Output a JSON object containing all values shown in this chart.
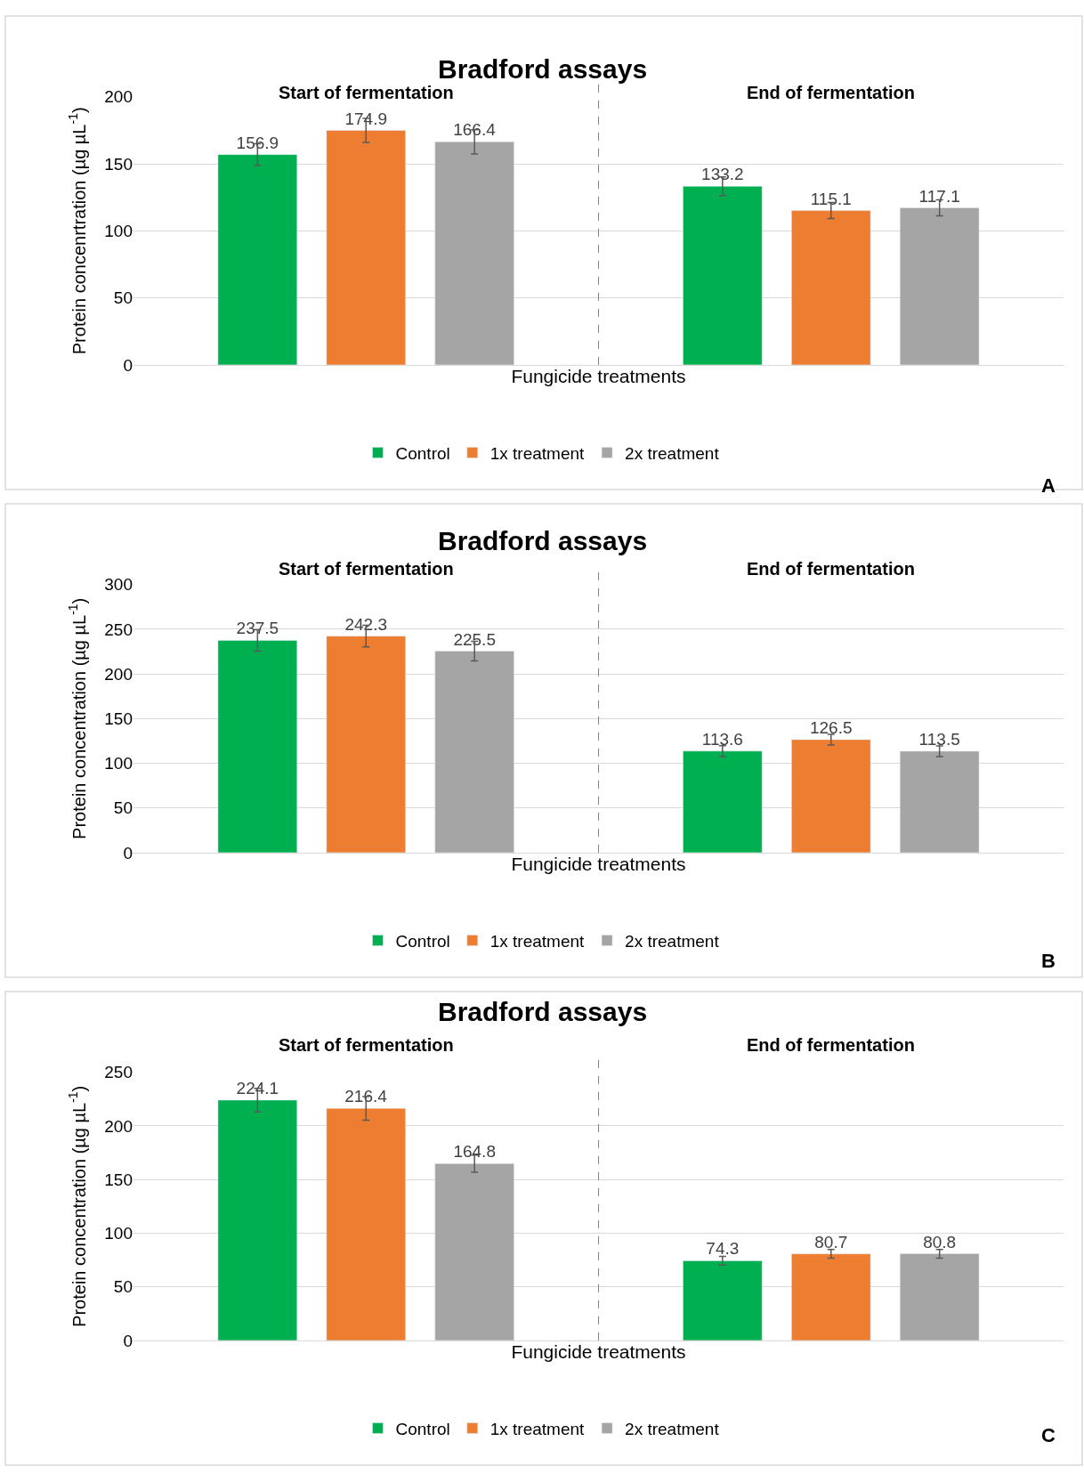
{
  "chart_data": [
    {
      "type": "bar",
      "title": "Bradford assays",
      "xlabel": "Fungicide treatments",
      "ylabel": "Protein concenrtration (µg µL$^{-1}$)",
      "categories": [
        null,
        null
      ],
      "series": [
        {
          "name": "Control",
          "color": "#00b050",
          "values": [
            156.9,
            133.2
          ],
          "errors": [
            8,
            7
          ]
        },
        {
          "name": "1x treatment",
          "color": "#ed7d31",
          "values": [
            174.9,
            115.1
          ],
          "errors": [
            9,
            6
          ]
        },
        {
          "name": "2x treatment",
          "color": "#a5a5a5",
          "values": [
            166.4,
            117.1
          ],
          "errors": [
            9,
            6
          ]
        }
      ],
      "ylim": [
        0,
        200
      ],
      "yticks": [
        0,
        50,
        100,
        150,
        200
      ],
      "grid": "y",
      "legend": "bottom",
      "data_labels": true,
      "annotations": [
        "Start of fermentation",
        "End of fermentation",
        "A"
      ]
    },
    {
      "type": "bar",
      "title": "Bradford assays",
      "xlabel": "Fungicide treatments",
      "ylabel": "Protein concentration (µg µL$^{-1}$)",
      "categories": [
        null,
        null
      ],
      "series": [
        {
          "name": "Control",
          "color": "#00b050",
          "values": [
            237.5,
            113.6
          ],
          "errors": [
            12,
            6
          ]
        },
        {
          "name": "1x treatment",
          "color": "#ed7d31",
          "values": [
            242.3,
            126.5
          ],
          "errors": [
            12,
            6
          ]
        },
        {
          "name": "2x treatment",
          "color": "#a5a5a5",
          "values": [
            225.5,
            113.5
          ],
          "errors": [
            11,
            6
          ]
        }
      ],
      "ylim": [
        0,
        300
      ],
      "yticks": [
        0,
        50,
        100,
        150,
        200,
        250,
        300
      ],
      "grid": "y",
      "legend": "bottom",
      "data_labels": true,
      "annotations": [
        "Start of fermentation",
        "End of fermentation",
        "B"
      ]
    },
    {
      "type": "bar",
      "title": "Bradford assays",
      "xlabel": "Fungicide treatments",
      "ylabel": "Protein concentration (µg µL$^{-1}$)",
      "categories": [
        null,
        null
      ],
      "series": [
        {
          "name": "Control",
          "color": "#00b050",
          "values": [
            224.1,
            74.3
          ],
          "errors": [
            11,
            4
          ]
        },
        {
          "name": "1x treatment",
          "color": "#ed7d31",
          "values": [
            216.4,
            80.7
          ],
          "errors": [
            11,
            4
          ]
        },
        {
          "name": "2x treatment",
          "color": "#a5a5a5",
          "values": [
            164.8,
            80.8
          ],
          "errors": [
            8,
            4
          ]
        }
      ],
      "ylim": [
        0,
        250
      ],
      "yticks": [
        0,
        50,
        100,
        150,
        200,
        250
      ],
      "grid": "y",
      "legend": "bottom",
      "data_labels": true,
      "annotations": [
        "Start of fermentation",
        "End of fermentation",
        "C"
      ]
    }
  ]
}
